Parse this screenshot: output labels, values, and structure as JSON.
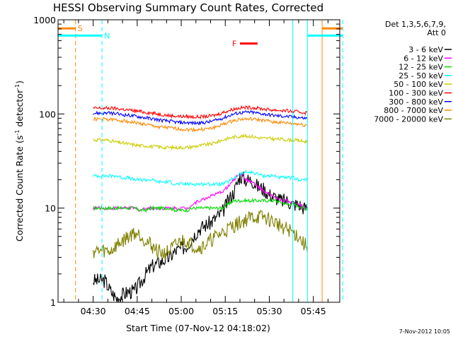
{
  "chart_data": {
    "type": "line",
    "title": "HESSI Observing Summary Count Rates, Corrected",
    "xlabel": "Start Time (07-Nov-12 04:18:02)",
    "ylabel": "Corrected Count Rate (s⁻¹ detector⁻¹)",
    "ylabel_parts": [
      "Corrected Count Rate (s",
      "-1",
      " detector",
      "-1",
      ")"
    ],
    "yscale": "log",
    "ylim": [
      1,
      1000
    ],
    "xlim": [
      "04:18:02",
      "05:54:00"
    ],
    "x_ticks": [
      "04:30",
      "04:45",
      "05:00",
      "05:15",
      "05:30",
      "05:45"
    ],
    "y_ticks": [
      "1",
      "10",
      "100",
      "1000"
    ],
    "legend_header": [
      "Det 1,3,5,6,7,9,",
      "Att 0"
    ],
    "legend_position": "right",
    "time_points": [
      "04:34",
      "04:36",
      "04:38",
      "04:40",
      "04:42",
      "04:44",
      "04:46",
      "04:48",
      "04:50",
      "04:52",
      "04:54",
      "04:56",
      "04:58",
      "05:00",
      "05:02",
      "05:04",
      "05:06",
      "05:08",
      "05:10",
      "05:12",
      "05:14",
      "05:16",
      "05:18",
      "05:20",
      "05:22",
      "05:24",
      "05:26",
      "05:28",
      "05:30",
      "05:32",
      "05:34",
      "05:36",
      "05:38",
      "05:40",
      "05:42"
    ],
    "series": [
      {
        "name": "3 - 6 keV",
        "color": "#000000",
        "values": [
          1.7,
          1.3,
          1.1,
          1.2,
          1.3,
          1.3,
          1.6,
          2.0,
          2.4,
          2.6,
          2.8,
          3.0,
          3.5,
          3.7,
          4.0,
          5.0,
          6.0,
          6.5,
          7.0,
          8.0,
          9.0,
          12,
          15,
          22,
          20,
          20,
          17,
          16,
          14,
          13,
          12,
          12,
          11,
          11,
          10
        ]
      },
      {
        "name": "6 - 12 keV",
        "color": "#ff00ff",
        "values": [
          10,
          10,
          10,
          10,
          10,
          10,
          9.5,
          10,
          10,
          10,
          10,
          10,
          10,
          10,
          10,
          11,
          12,
          12.5,
          13.5,
          14,
          15,
          17,
          20,
          24,
          20,
          19,
          17,
          15,
          14,
          13,
          12,
          12,
          11,
          11,
          10
        ]
      },
      {
        "name": "12 - 25 keV",
        "color": "#00dd00",
        "values": [
          10,
          10,
          10,
          10,
          10,
          10,
          9.5,
          9.5,
          10,
          10,
          10,
          10,
          9.5,
          9.5,
          9.5,
          10,
          10,
          10,
          10,
          10,
          10,
          11,
          12,
          12,
          12,
          12,
          12,
          12,
          12,
          12,
          11.5,
          11,
          11,
          10.5,
          10
        ]
      },
      {
        "name": "25 - 50 keV",
        "color": "#00ffff",
        "values": [
          22,
          22,
          22,
          21,
          21,
          20,
          20,
          20,
          20,
          19,
          19,
          19,
          18,
          18,
          18,
          18,
          18,
          18,
          18,
          18,
          18,
          19,
          21,
          23,
          24,
          24,
          23,
          22,
          22,
          22,
          21,
          21,
          21,
          20,
          20
        ]
      },
      {
        "name": "50 - 100 keV",
        "color": "#cccc00",
        "values": [
          53,
          52,
          50,
          49,
          48,
          47,
          46,
          46,
          45,
          45,
          44,
          44,
          44,
          44,
          44,
          45,
          46,
          47,
          48,
          50,
          53,
          55,
          57,
          58,
          58,
          58,
          56,
          55,
          55,
          54,
          54,
          53,
          53,
          52,
          51
        ]
      },
      {
        "name": "100 - 300 keV",
        "color": "#ff0000",
        "values": [
          115,
          115,
          114,
          112,
          110,
          108,
          106,
          104,
          102,
          100,
          98,
          96,
          95,
          94,
          94,
          93,
          93,
          94,
          95,
          98,
          103,
          108,
          113,
          116,
          117,
          117,
          115,
          113,
          111,
          110,
          109,
          108,
          106,
          105,
          103
        ]
      },
      {
        "name": "300 - 800 keV",
        "color": "#0000ff",
        "values": [
          102,
          102,
          100,
          98,
          97,
          95,
          93,
          91,
          89,
          87,
          85,
          84,
          82,
          81,
          81,
          80,
          80,
          81,
          83,
          86,
          90,
          95,
          100,
          103,
          104,
          104,
          102,
          100,
          98,
          96,
          95,
          94,
          93,
          92,
          90
        ]
      },
      {
        "name": "800 - 7000 keV",
        "color": "#ff8800",
        "values": [
          88,
          87,
          86,
          85,
          83,
          81,
          79,
          77,
          75,
          73,
          72,
          71,
          70,
          69,
          68,
          68,
          68,
          69,
          70,
          73,
          77,
          81,
          85,
          88,
          88,
          88,
          87,
          85,
          84,
          82,
          81,
          80,
          79,
          78,
          76
        ]
      },
      {
        "name": "7000 - 20000 keV",
        "color": "#808000",
        "values": [
          3.5,
          3.5,
          4.0,
          4.5,
          5.0,
          5.5,
          5.2,
          4.5,
          4.0,
          3.5,
          3.3,
          3.5,
          4.0,
          4.5,
          4.5,
          4.0,
          3.8,
          4.0,
          4.5,
          5.0,
          5.5,
          6.0,
          6.5,
          7.0,
          7.5,
          8.0,
          8.0,
          8.0,
          7.5,
          7.0,
          6.5,
          6.0,
          5.5,
          5.0,
          4.0
        ]
      }
    ],
    "annotations": [
      {
        "label": "S",
        "color": "#ff8800"
      },
      {
        "label": "N",
        "color": "#00ffff"
      },
      {
        "label": "F",
        "color": "#ff0000",
        "start": "05:20",
        "end": "05:26"
      }
    ],
    "markers": [
      {
        "time": "04:24",
        "color": "#ff8800",
        "style": "dashed"
      },
      {
        "time": "04:33",
        "color": "#00ffff",
        "style": "dashed"
      },
      {
        "time": "05:38",
        "color": "#00ffff",
        "style": "solid"
      },
      {
        "time": "05:43",
        "color": "#00ffff",
        "style": "solid"
      },
      {
        "time": "05:48",
        "color": "#ff8800",
        "style": "solid"
      },
      {
        "time": "05:55",
        "color": "#00ffff",
        "style": "dashed"
      }
    ],
    "flag_bars": [
      {
        "label": "S",
        "color": "#ff8800",
        "level": 810,
        "segments": [
          [
            "04:18",
            "04:24"
          ],
          [
            "05:48",
            "05:55"
          ]
        ]
      },
      {
        "label": "N",
        "color": "#00ffff",
        "level": 680,
        "segments": [
          [
            "04:18",
            "04:33"
          ],
          [
            "05:43",
            "05:55"
          ]
        ]
      },
      {
        "label": "F",
        "color": "#ff0000",
        "level": 560,
        "segments": [
          [
            "05:20",
            "05:26"
          ]
        ]
      }
    ],
    "data_start": "04:30",
    "data_end": "05:43",
    "footer_date": "7-Nov-2012 10:05"
  }
}
